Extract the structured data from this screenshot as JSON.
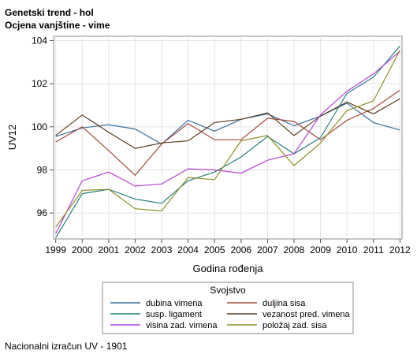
{
  "titles": {
    "line1": "Genetski trend - hol",
    "line2": "Ocjena vanjštine - vime"
  },
  "footnote": "Nacionalni izračun UV - 1901",
  "chart_data": {
    "type": "line",
    "xlabel": "Godina rođenja",
    "ylabel": "UV12",
    "x": [
      1999,
      2000,
      2001,
      2002,
      2003,
      2004,
      2005,
      2006,
      2007,
      2008,
      2009,
      2010,
      2011,
      2012
    ],
    "ylim": [
      94.8,
      104.2
    ],
    "yticks": [
      96,
      98,
      100,
      102,
      104
    ],
    "grid": true,
    "legend": {
      "title": "Svojstvo",
      "placement": "bottom"
    },
    "series": [
      {
        "name": "dubina vimena",
        "color": "#3a6f9c",
        "values": [
          99.55,
          99.95,
          100.1,
          99.9,
          99.2,
          100.3,
          99.8,
          100.35,
          100.6,
          100.05,
          100.5,
          101.1,
          100.2,
          99.85
        ]
      },
      {
        "name": "duljina sisa",
        "color": "#a04a3a",
        "values": [
          99.3,
          100.0,
          98.9,
          97.75,
          99.2,
          100.15,
          99.4,
          99.4,
          100.4,
          100.25,
          99.4,
          100.3,
          100.85,
          101.7
        ]
      },
      {
        "name": "susp. ligament",
        "color": "#2a7f7f",
        "values": [
          94.85,
          96.9,
          97.1,
          96.65,
          96.45,
          97.5,
          97.9,
          98.6,
          99.55,
          98.75,
          99.5,
          101.55,
          102.3,
          103.75
        ]
      },
      {
        "name": "vezanost pred. vimena",
        "color": "#5a3d1e",
        "values": [
          99.6,
          100.55,
          99.75,
          99.0,
          99.25,
          99.35,
          100.2,
          100.35,
          100.65,
          99.6,
          100.5,
          101.15,
          100.6,
          101.3
        ]
      },
      {
        "name": "visina zad. vimena",
        "color": "#b545d8",
        "values": [
          95.05,
          97.5,
          97.9,
          97.25,
          97.35,
          98.05,
          98.0,
          97.85,
          98.45,
          98.75,
          100.55,
          101.65,
          102.45,
          103.5
        ]
      },
      {
        "name": "položaj zad. sisa",
        "color": "#8f8f2a",
        "values": [
          95.35,
          97.05,
          97.1,
          96.2,
          96.1,
          97.65,
          97.55,
          99.35,
          99.6,
          98.2,
          99.25,
          100.75,
          101.2,
          103.55
        ]
      }
    ]
  }
}
